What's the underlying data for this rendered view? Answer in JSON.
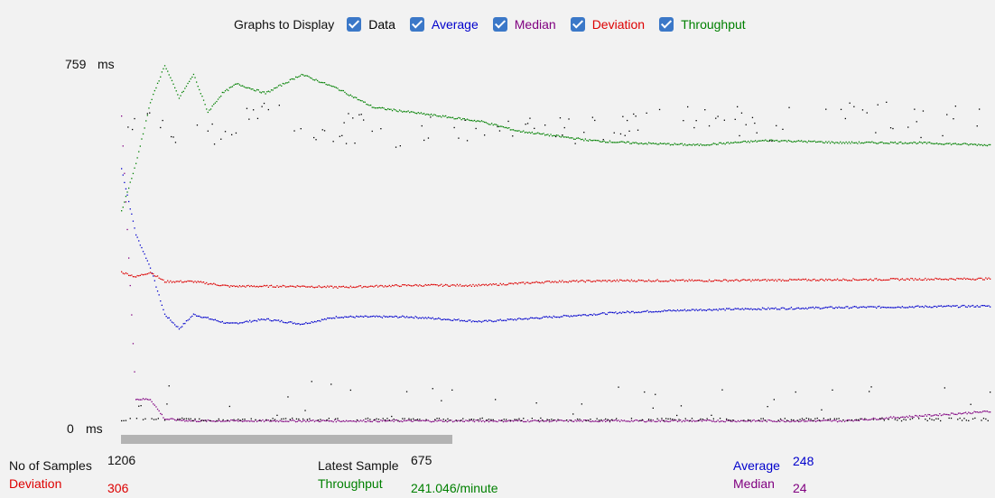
{
  "legend": {
    "title": "Graphs to Display",
    "items": [
      {
        "key": "data",
        "label": "Data",
        "checked": true,
        "color": "#000000"
      },
      {
        "key": "average",
        "label": "Average",
        "checked": true,
        "color": "#0000cc"
      },
      {
        "key": "median",
        "label": "Median",
        "checked": true,
        "color": "#800080"
      },
      {
        "key": "deviation",
        "label": "Deviation",
        "checked": true,
        "color": "#dd0000"
      },
      {
        "key": "throughput",
        "label": "Throughput",
        "checked": true,
        "color": "#008000"
      }
    ]
  },
  "yaxis": {
    "max_value": "759",
    "min_value": "0",
    "unit": "ms"
  },
  "stats": {
    "samples_label": "No of Samples",
    "samples_value": "1206",
    "deviation_label": "Deviation",
    "deviation_value": "306",
    "latest_label": "Latest Sample",
    "latest_value": "675",
    "throughput_label": "Throughput",
    "throughput_value": "241.046/minute",
    "average_label": "Average",
    "average_value": "248",
    "median_label": "Median",
    "median_value": "24"
  },
  "chart_data": {
    "type": "scatter",
    "ylim": [
      0,
      759
    ],
    "series": [
      {
        "name": "Average",
        "color": "#0000cc",
        "x": [
          0,
          20,
          40,
          60,
          80,
          100,
          150,
          200,
          250,
          300,
          400,
          500,
          600,
          700,
          800,
          1000,
          1206
        ],
        "y": [
          540,
          400,
          330,
          230,
          200,
          230,
          210,
          220,
          210,
          225,
          225,
          215,
          225,
          235,
          240,
          245,
          248
        ]
      },
      {
        "name": "Deviation",
        "color": "#dd0000",
        "x": [
          0,
          20,
          40,
          60,
          80,
          100,
          150,
          200,
          250,
          300,
          400,
          500,
          600,
          700,
          800,
          1000,
          1206
        ],
        "y": [
          320,
          310,
          320,
          300,
          300,
          300,
          290,
          290,
          290,
          288,
          292,
          292,
          300,
          302,
          302,
          304,
          306
        ]
      },
      {
        "name": "Median",
        "color": "#800080",
        "x": [
          0,
          20,
          40,
          60,
          100,
          200,
          400,
          600,
          800,
          1000,
          1206
        ],
        "y": [
          650,
          50,
          50,
          8,
          4,
          4,
          4,
          4,
          4,
          4,
          24
        ]
      },
      {
        "name": "Throughput",
        "color": "#008000",
        "x": [
          0,
          20,
          40,
          60,
          80,
          100,
          120,
          140,
          160,
          200,
          250,
          300,
          350,
          400,
          450,
          500,
          550,
          600,
          650,
          700,
          800,
          900,
          1000,
          1100,
          1206
        ],
        "y": [
          450,
          550,
          680,
          760,
          690,
          740,
          660,
          700,
          720,
          700,
          740,
          710,
          670,
          660,
          650,
          640,
          620,
          610,
          600,
          595,
          590,
          600,
          595,
          595,
          590
        ]
      },
      {
        "name": "Data",
        "color": "#000000",
        "x": [
          0,
          50,
          100,
          150,
          200,
          250,
          300,
          400,
          500,
          600,
          700,
          800,
          900,
          1000,
          1100,
          1206
        ],
        "y": [
          675,
          650,
          640,
          650,
          690,
          640,
          650,
          640,
          660,
          650,
          655,
          680,
          650,
          690,
          660,
          675
        ]
      }
    ]
  }
}
